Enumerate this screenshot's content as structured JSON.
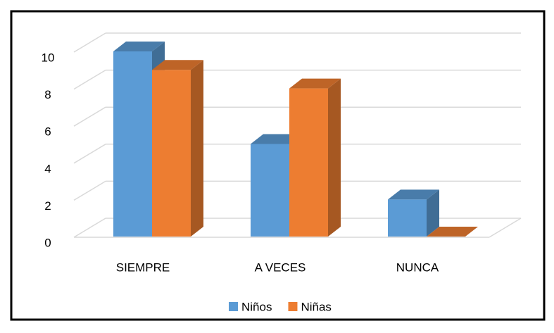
{
  "chart_data": {
    "type": "bar3d",
    "categories": [
      "SIEMPRE",
      "A VECES",
      "NUNCA"
    ],
    "series": [
      {
        "name": "Niños",
        "color": "#5b9bd5",
        "values": [
          10,
          5,
          2
        ]
      },
      {
        "name": "Niñas",
        "color": "#ed7d31",
        "values": [
          9,
          8,
          0
        ]
      }
    ],
    "ylim": [
      0,
      10
    ],
    "yticks": [
      0,
      2,
      4,
      6,
      8,
      10
    ],
    "grid": true,
    "legend": "bottom"
  }
}
